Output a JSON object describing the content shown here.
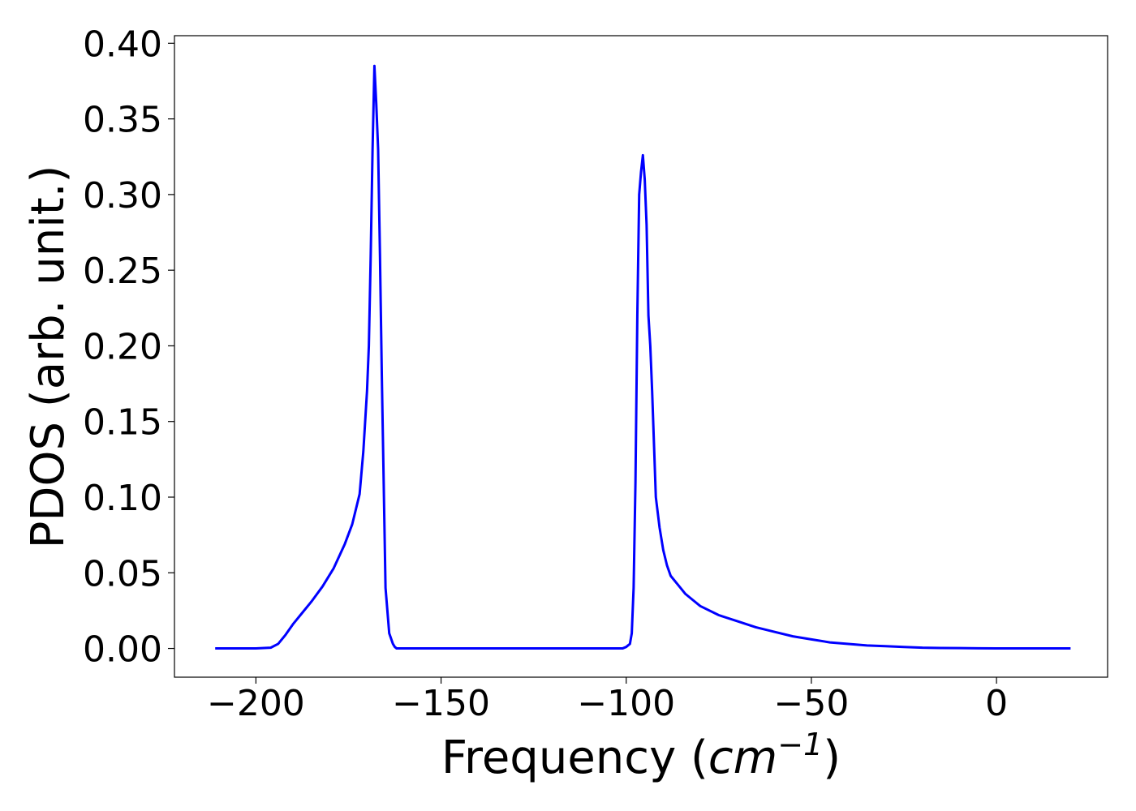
{
  "chart_data": {
    "type": "line",
    "title": "",
    "xlabel_main": "Frequency (",
    "xlabel_unit": "cm",
    "xlabel_exp": "−1",
    "xlabel_close": ")",
    "ylabel": "PDOS (arb. unit.)",
    "xlim": [
      -222,
      30
    ],
    "ylim": [
      -0.019,
      0.405
    ],
    "xticks": [
      -200,
      -150,
      -100,
      -50,
      0
    ],
    "xtick_labels": [
      "−200",
      "−150",
      "−100",
      "−50",
      "0"
    ],
    "yticks": [
      0.0,
      0.05,
      0.1,
      0.15,
      0.2,
      0.25,
      0.3,
      0.35,
      0.4
    ],
    "ytick_labels": [
      "0.00",
      "0.05",
      "0.10",
      "0.15",
      "0.20",
      "0.25",
      "0.30",
      "0.35",
      "0.40"
    ],
    "grid": false,
    "series": [
      {
        "color": "#0000ff",
        "x": [
          -211,
          -200,
          -196,
          -194,
          -192,
          -190,
          -188,
          -185,
          -182,
          -179,
          -176,
          -174,
          -172,
          -171,
          -170,
          -169.5,
          -169,
          -168.5,
          -168,
          -167.5,
          -167,
          -166.5,
          -166,
          -165,
          -164,
          -163,
          -162.5,
          -162,
          -161,
          -155,
          -150,
          -140,
          -130,
          -120,
          -110,
          -101,
          -100,
          -99,
          -98.5,
          -98,
          -97.5,
          -97,
          -96.5,
          -96,
          -95.5,
          -95,
          -94.5,
          -94,
          -93.5,
          -93,
          -92.5,
          -92,
          -91,
          -90,
          -89,
          -88,
          -86,
          -84,
          -82,
          -80,
          -75,
          -70,
          -65,
          -60,
          -55,
          -50,
          -45,
          -40,
          -35,
          -30,
          -25,
          -20,
          -15,
          -10,
          -5,
          0,
          10,
          20
        ],
        "y": [
          0.0,
          0.0,
          0.0005,
          0.003,
          0.009,
          0.016,
          0.022,
          0.031,
          0.041,
          0.053,
          0.069,
          0.082,
          0.102,
          0.13,
          0.17,
          0.2,
          0.26,
          0.33,
          0.385,
          0.36,
          0.33,
          0.26,
          0.18,
          0.04,
          0.01,
          0.003,
          0.001,
          0.0,
          0.0,
          0.0,
          0.0,
          0.0,
          0.0,
          0.0,
          0.0,
          0.0,
          0.001,
          0.003,
          0.01,
          0.04,
          0.11,
          0.22,
          0.3,
          0.315,
          0.326,
          0.31,
          0.28,
          0.22,
          0.2,
          0.17,
          0.135,
          0.1,
          0.08,
          0.065,
          0.055,
          0.048,
          0.042,
          0.036,
          0.032,
          0.028,
          0.022,
          0.018,
          0.014,
          0.011,
          0.008,
          0.006,
          0.004,
          0.003,
          0.002,
          0.0015,
          0.001,
          0.0005,
          0.0003,
          0.0002,
          0.0001,
          0.0,
          0.0,
          0.0
        ]
      }
    ]
  }
}
